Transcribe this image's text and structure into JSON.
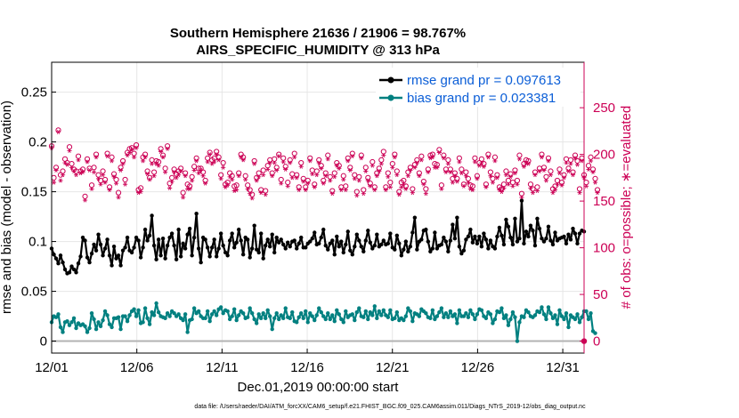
{
  "chart_data": {
    "type": "line",
    "title_line1": "Southern Hemisphere 21636 / 21906 = 98.767%",
    "title_line2": "AIRS_SPECIFIC_HUMIDITY @ 313 hPa",
    "ylabel_left": "rmse and bias (model - observation)",
    "ylabel_right": "# of obs: o=possible; ∗=evaluated",
    "xlabel": "Dec.01,2019 00:00:00 start",
    "footnote": "data file: /Users/raeder/DAI/ATM_forcXX/CAM6_setup/f.e21.FHIST_BGC.f09_025.CAM6assim.011/Diags_NTrS_2019-12/obs_diag_output.nc",
    "ylim_left": [
      -0.012,
      0.28
    ],
    "ylim_right": [
      -12.8,
      298.7
    ],
    "xlim": [
      0,
      31.25
    ],
    "left_ticks": [
      "0",
      "0.05",
      "0.1",
      "0.15",
      "0.2",
      "0.25"
    ],
    "left_tick_values": [
      0,
      0.05,
      0.1,
      0.15,
      0.2,
      0.25
    ],
    "right_ticks": [
      "0",
      "50",
      "100",
      "150",
      "200",
      "250"
    ],
    "right_tick_values": [
      0,
      50,
      100,
      150,
      200,
      250
    ],
    "x_ticks": [
      "12/01",
      "12/06",
      "12/11",
      "12/16",
      "12/21",
      "12/26",
      "12/31"
    ],
    "x_tick_values": [
      0,
      5,
      10,
      15,
      20,
      25,
      30
    ],
    "legend": [
      {
        "label": "rmse grand pr = 0.097613",
        "color": "#000000"
      },
      {
        "label": "bias grand pr = 0.023381",
        "color": "#008080"
      }
    ],
    "colors": {
      "rmse": "#000000",
      "bias": "#008080",
      "obs": "#cc0055",
      "grid": "#e6e6e6",
      "zero": "#b3b3b3"
    },
    "series_rmse": [
      0.093,
      0.087,
      0.083,
      0.078,
      0.086,
      0.079,
      0.072,
      0.068,
      0.069,
      0.075,
      0.072,
      0.069,
      0.078,
      0.085,
      0.104,
      0.101,
      0.084,
      0.079,
      0.088,
      0.097,
      0.091,
      0.107,
      0.097,
      0.086,
      0.093,
      0.102,
      0.086,
      0.076,
      0.095,
      0.083,
      0.086,
      0.076,
      0.091,
      0.094,
      0.104,
      0.091,
      0.089,
      0.094,
      0.104,
      0.101,
      0.084,
      0.094,
      0.112,
      0.101,
      0.106,
      0.126,
      0.096,
      0.082,
      0.102,
      0.086,
      0.103,
      0.083,
      0.096,
      0.104,
      0.108,
      0.096,
      0.082,
      0.112,
      0.085,
      0.098,
      0.093,
      0.107,
      0.113,
      0.086,
      0.104,
      0.128,
      0.093,
      0.079,
      0.104,
      0.102,
      0.094,
      0.085,
      0.094,
      0.102,
      0.085,
      0.093,
      0.108,
      0.096,
      0.089,
      0.086,
      0.101,
      0.108,
      0.094,
      0.099,
      0.112,
      0.101,
      0.087,
      0.104,
      0.102,
      0.084,
      0.093,
      0.116,
      0.092,
      0.089,
      0.108,
      0.083,
      0.096,
      0.102,
      0.095,
      0.107,
      0.089,
      0.104,
      0.099,
      0.102,
      0.097,
      0.093,
      0.099,
      0.095,
      0.1,
      0.101,
      0.093,
      0.098,
      0.104,
      0.094,
      0.094,
      0.098,
      0.1,
      0.103,
      0.109,
      0.097,
      0.098,
      0.104,
      0.112,
      0.096,
      0.092,
      0.098,
      0.101,
      0.087,
      0.105,
      0.095,
      0.1,
      0.089,
      0.097,
      0.11,
      0.091,
      0.087,
      0.095,
      0.107,
      0.101,
      0.095,
      0.09,
      0.101,
      0.111,
      0.099,
      0.093,
      0.096,
      0.107,
      0.095,
      0.097,
      0.101,
      0.097,
      0.098,
      0.108,
      0.094,
      0.092,
      0.106,
      0.098,
      0.086,
      0.092,
      0.1,
      0.09,
      0.095,
      0.109,
      0.124,
      0.092,
      0.1,
      0.102,
      0.111,
      0.112,
      0.1,
      0.09,
      0.093,
      0.109,
      0.093,
      0.096,
      0.097,
      0.104,
      0.1,
      0.09,
      0.101,
      0.117,
      0.103,
      0.124,
      0.095,
      0.088,
      0.091,
      0.102,
      0.105,
      0.112,
      0.099,
      0.105,
      0.098,
      0.105,
      0.095,
      0.108,
      0.102,
      0.093,
      0.101,
      0.095,
      0.093,
      0.105,
      0.114,
      0.106,
      0.097,
      0.122,
      0.115,
      0.104,
      0.097,
      0.123,
      0.1,
      0.103,
      0.141,
      0.098,
      0.11,
      0.105,
      0.116,
      0.111,
      0.096,
      0.123,
      0.113,
      0.103,
      0.1,
      0.103,
      0.115,
      0.101,
      0.097,
      0.109,
      0.101,
      0.103,
      0.104,
      0.105,
      0.098,
      0.107,
      0.102,
      0.113,
      0.108,
      0.098,
      0.108,
      0.111,
      0.11
    ],
    "series_bias": [
      0.019,
      0.025,
      0.024,
      0.027,
      0.014,
      0.009,
      0.019,
      0.02,
      0.016,
      0.019,
      0.023,
      0.013,
      0.018,
      0.016,
      0.017,
      0.015,
      0.009,
      0.013,
      0.028,
      0.022,
      0.012,
      0.019,
      0.015,
      0.021,
      0.03,
      0.026,
      0.017,
      0.014,
      0.023,
      0.023,
      0.024,
      0.012,
      0.025,
      0.025,
      0.02,
      0.026,
      0.03,
      0.032,
      0.025,
      0.031,
      0.018,
      0.019,
      0.033,
      0.023,
      0.017,
      0.029,
      0.026,
      0.038,
      0.029,
      0.025,
      0.024,
      0.023,
      0.028,
      0.025,
      0.03,
      0.028,
      0.025,
      0.027,
      0.023,
      0.021,
      0.027,
      0.009,
      0.021,
      0.022,
      0.033,
      0.028,
      0.03,
      0.025,
      0.023,
      0.023,
      0.03,
      0.02,
      0.027,
      0.03,
      0.026,
      0.032,
      0.034,
      0.028,
      0.031,
      0.03,
      0.022,
      0.025,
      0.032,
      0.021,
      0.026,
      0.03,
      0.028,
      0.023,
      0.024,
      0.033,
      0.028,
      0.022,
      0.018,
      0.027,
      0.023,
      0.028,
      0.023,
      0.031,
      0.025,
      0.012,
      0.023,
      0.028,
      0.022,
      0.026,
      0.023,
      0.033,
      0.024,
      0.023,
      0.029,
      0.02,
      0.019,
      0.024,
      0.028,
      0.023,
      0.03,
      0.019,
      0.028,
      0.025,
      0.021,
      0.026,
      0.033,
      0.029,
      0.025,
      0.022,
      0.028,
      0.022,
      0.026,
      0.02,
      0.031,
      0.027,
      0.022,
      0.019,
      0.03,
      0.024,
      0.026,
      0.027,
      0.021,
      0.029,
      0.033,
      0.025,
      0.024,
      0.03,
      0.022,
      0.029,
      0.026,
      0.035,
      0.023,
      0.03,
      0.026,
      0.031,
      0.026,
      0.024,
      0.031,
      0.022,
      0.023,
      0.029,
      0.021,
      0.023,
      0.021,
      0.025,
      0.033,
      0.03,
      0.02,
      0.028,
      0.027,
      0.025,
      0.032,
      0.03,
      0.028,
      0.024,
      0.023,
      0.031,
      0.022,
      0.025,
      0.029,
      0.033,
      0.024,
      0.028,
      0.024,
      0.03,
      0.025,
      0.027,
      0.018,
      0.031,
      0.025,
      0.025,
      0.028,
      0.024,
      0.031,
      0.027,
      0.022,
      0.027,
      0.032,
      0.031,
      0.025,
      0.023,
      0.029,
      0.027,
      0.018,
      0.022,
      0.03,
      0.029,
      0.033,
      0.023,
      0.026,
      0.016,
      0.022,
      0.029,
      0.024,
      0.0,
      0.019,
      0.025,
      0.024,
      0.031,
      0.029,
      0.025,
      0.024,
      0.026,
      0.03,
      0.029,
      0.034,
      0.027,
      0.022,
      0.034,
      0.028,
      0.023,
      0.026,
      0.017,
      0.031,
      0.025,
      0.022,
      0.028,
      0.014,
      0.026,
      0.024,
      0.022,
      0.027,
      0.019,
      0.024,
      0.03,
      0.03,
      0.022,
      0.028,
      0.01,
      0.008
    ],
    "series_obs_possible": [
      209,
      175,
      186,
      226,
      178,
      182,
      195,
      191,
      208,
      190,
      184,
      182,
      198,
      182,
      184,
      155,
      195,
      185,
      167,
      186,
      200,
      178,
      172,
      182,
      173,
      201,
      165,
      197,
      179,
      173,
      159,
      186,
      193,
      173,
      202,
      206,
      207,
      201,
      210,
      162,
      164,
      197,
      200,
      182,
      175,
      194,
      181,
      193,
      192,
      206,
      199,
      185,
      209,
      169,
      175,
      184,
      179,
      182,
      185,
      159,
      180,
      168,
      166,
      176,
      187,
      196,
      185,
      185,
      181,
      172,
      196,
      202,
      194,
      196,
      203,
      197,
      178,
      191,
      168,
      170,
      180,
      177,
      166,
      167,
      180,
      200,
      197,
      177,
      167,
      162,
      157,
      193,
      175,
      180,
      162,
      183,
      161,
      188,
      194,
      180,
      195,
      186,
      200,
      173,
      196,
      187,
      170,
      194,
      179,
      201,
      178,
      165,
      191,
      174,
      165,
      172,
      196,
      183,
      168,
      182,
      194,
      188,
      172,
      180,
      199,
      176,
      161,
      180,
      191,
      188,
      165,
      177,
      166,
      196,
      186,
      201,
      178,
      160,
      176,
      199,
      162,
      186,
      175,
      169,
      192,
      165,
      180,
      185,
      194,
      203,
      165,
      180,
      170,
      190,
      200,
      182,
      160,
      170,
      172,
      166,
      181,
      186,
      163,
      189,
      194,
      180,
      198,
      171,
      163,
      184,
      199,
      200,
      190,
      189,
      205,
      167,
      199,
      184,
      194,
      184,
      174,
      180,
      174,
      196,
      184,
      168,
      181,
      174,
      167,
      166,
      196,
      177,
      191,
      195,
      190,
      168,
      200,
      181,
      174,
      197,
      178,
      165,
      163,
      168,
      182,
      172,
      179,
      170,
      183,
      172,
      199,
      158,
      190,
      194,
      193,
      168,
      163,
      181,
      165,
      185,
      200,
      186,
      176,
      196,
      182,
      163,
      166,
      172,
      184,
      170,
      178,
      195,
      185,
      194,
      181,
      199,
      193,
      163,
      196,
      178,
      170,
      188,
      197,
      184,
      174,
      162
    ],
    "series_obs_evaluated": [
      207,
      170,
      183,
      224,
      172,
      178,
      191,
      189,
      204,
      186,
      182,
      178,
      194,
      180,
      181,
      151,
      192,
      183,
      163,
      181,
      197,
      174,
      168,
      178,
      170,
      198,
      162,
      193,
      176,
      169,
      154,
      183,
      190,
      168,
      199,
      202,
      205,
      197,
      207,
      159,
      160,
      193,
      197,
      179,
      173,
      190,
      177,
      190,
      188,
      203,
      197,
      181,
      206,
      164,
      171,
      181,
      175,
      178,
      182,
      154,
      177,
      163,
      163,
      172,
      183,
      193,
      180,
      183,
      177,
      169,
      192,
      200,
      190,
      192,
      200,
      194,
      174,
      186,
      165,
      167,
      176,
      173,
      161,
      162,
      177,
      197,
      194,
      173,
      163,
      158,
      153,
      190,
      172,
      176,
      159,
      178,
      157,
      184,
      191,
      177,
      191,
      183,
      198,
      169,
      192,
      184,
      166,
      191,
      175,
      197,
      175,
      162,
      187,
      171,
      162,
      169,
      193,
      179,
      165,
      178,
      191,
      185,
      169,
      177,
      195,
      172,
      158,
      176,
      188,
      185,
      162,
      173,
      162,
      193,
      183,
      198,
      174,
      156,
      172,
      196,
      158,
      182,
      172,
      166,
      188,
      162,
      177,
      182,
      190,
      199,
      162,
      176,
      165,
      186,
      197,
      178,
      157,
      165,
      168,
      163,
      177,
      183,
      159,
      186,
      191,
      177,
      194,
      168,
      158,
      181,
      196,
      197,
      186,
      186,
      202,
      163,
      196,
      181,
      190,
      181,
      170,
      177,
      171,
      192,
      180,
      166,
      177,
      170,
      163,
      162,
      192,
      174,
      188,
      191,
      187,
      165,
      197,
      177,
      170,
      193,
      175,
      162,
      160,
      164,
      178,
      168,
      176,
      166,
      180,
      168,
      195,
      154,
      187,
      191,
      190,
      164,
      159,
      178,
      161,
      182,
      197,
      183,
      172,
      193,
      178,
      159,
      162,
      168,
      180,
      167,
      175,
      191,
      182,
      190,
      178,
      196,
      189,
      159,
      193,
      175,
      166,
      184,
      193,
      181,
      170,
      159
    ]
  }
}
